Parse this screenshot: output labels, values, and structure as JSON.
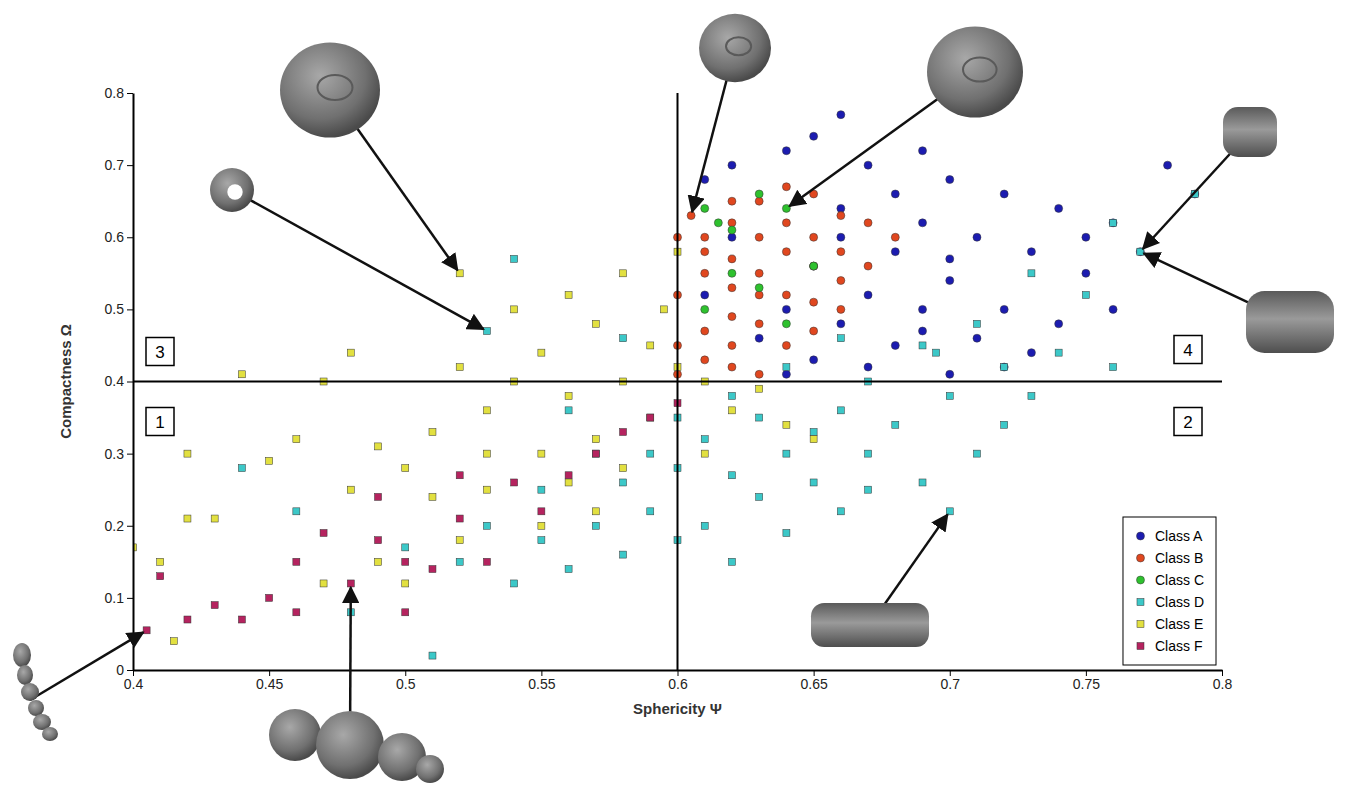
{
  "chart_data": {
    "type": "scatter",
    "x_label": "Sphericity Ψ",
    "y_label": "Compactness Ω",
    "xlim": [
      0.4,
      0.8
    ],
    "xticks": [
      0.4,
      0.45,
      0.5,
      0.55,
      0.6,
      0.65,
      0.7,
      0.75,
      0.8
    ],
    "ylim": [
      0,
      0.8
    ],
    "yticks": [
      0,
      0.1,
      0.2,
      0.3,
      0.4,
      0.5,
      0.6,
      0.7,
      0.8
    ],
    "legend": "lower right",
    "grid": false,
    "quadrant_x": 0.6,
    "quadrant_y": 0.4,
    "quadrant_labels": [
      "1",
      "2",
      "3",
      "4"
    ],
    "annotations": [
      {
        "x": 0.405,
        "y": 0.055
      },
      {
        "x": 0.48,
        "y": 0.12
      },
      {
        "x": 0.53,
        "y": 0.47
      },
      {
        "x": 0.52,
        "y": 0.55
      },
      {
        "x": 0.605,
        "y": 0.63
      },
      {
        "x": 0.64,
        "y": 0.64
      },
      {
        "x": 0.77,
        "y": 0.58
      },
      {
        "x": 0.77,
        "y": 0.58
      },
      {
        "x": 0.7,
        "y": 0.22
      }
    ],
    "series": [
      {
        "name": "Class A",
        "color": "#1c1cb0",
        "marker": "circle",
        "x": [
          0.61,
          0.62,
          0.64,
          0.66,
          0.65,
          0.67,
          0.69,
          0.7,
          0.72,
          0.74,
          0.76,
          0.78,
          0.79,
          0.75,
          0.73,
          0.71,
          0.69,
          0.68,
          0.66,
          0.65,
          0.67,
          0.69,
          0.7,
          0.72,
          0.74,
          0.73,
          0.71,
          0.68,
          0.66,
          0.64,
          0.63,
          0.65,
          0.67,
          0.7,
          0.72,
          0.76,
          0.77,
          0.68,
          0.66,
          0.62,
          0.61,
          0.7,
          0.75,
          0.69,
          0.64
        ],
        "values": [
          0.68,
          0.7,
          0.72,
          0.77,
          0.74,
          0.7,
          0.72,
          0.68,
          0.66,
          0.64,
          0.62,
          0.7,
          0.66,
          0.55,
          0.58,
          0.6,
          0.62,
          0.58,
          0.6,
          0.56,
          0.52,
          0.5,
          0.54,
          0.5,
          0.48,
          0.44,
          0.46,
          0.45,
          0.48,
          0.5,
          0.46,
          0.43,
          0.42,
          0.41,
          0.42,
          0.5,
          0.58,
          0.66,
          0.64,
          0.6,
          0.52,
          0.57,
          0.6,
          0.47,
          0.41
        ]
      },
      {
        "name": "Class B",
        "color": "#e0471f",
        "marker": "circle",
        "x": [
          0.605,
          0.61,
          0.62,
          0.63,
          0.64,
          0.65,
          0.66,
          0.63,
          0.62,
          0.61,
          0.6,
          0.62,
          0.64,
          0.65,
          0.66,
          0.67,
          0.68,
          0.63,
          0.64,
          0.62,
          0.61,
          0.6,
          0.63,
          0.65,
          0.66,
          0.67,
          0.61,
          0.62,
          0.64,
          0.6,
          0.63,
          0.65,
          0.66,
          0.62,
          0.64,
          0.61,
          0.6,
          0.63,
          0.65,
          0.62
        ],
        "values": [
          0.63,
          0.6,
          0.62,
          0.65,
          0.67,
          0.66,
          0.63,
          0.6,
          0.57,
          0.55,
          0.52,
          0.53,
          0.58,
          0.6,
          0.58,
          0.62,
          0.6,
          0.55,
          0.52,
          0.49,
          0.47,
          0.45,
          0.48,
          0.51,
          0.54,
          0.56,
          0.43,
          0.42,
          0.45,
          0.41,
          0.41,
          0.47,
          0.5,
          0.65,
          0.62,
          0.58,
          0.6,
          0.52,
          0.56,
          0.45
        ]
      },
      {
        "name": "Class C",
        "color": "#2ec12e",
        "marker": "circle",
        "x": [
          0.61,
          0.615,
          0.62,
          0.63,
          0.64,
          0.62,
          0.61,
          0.65,
          0.63,
          0.64
        ],
        "values": [
          0.64,
          0.62,
          0.61,
          0.66,
          0.64,
          0.55,
          0.5,
          0.56,
          0.53,
          0.48
        ]
      },
      {
        "name": "Class D",
        "color": "#3cc8c8",
        "marker": "square",
        "x": [
          0.51,
          0.52,
          0.54,
          0.55,
          0.56,
          0.57,
          0.58,
          0.59,
          0.6,
          0.61,
          0.62,
          0.63,
          0.64,
          0.65,
          0.66,
          0.67,
          0.69,
          0.7,
          0.72,
          0.73,
          0.74,
          0.75,
          0.76,
          0.77,
          0.79,
          0.76,
          0.73,
          0.71,
          0.69,
          0.67,
          0.66,
          0.65,
          0.64,
          0.63,
          0.62,
          0.61,
          0.6,
          0.59,
          0.58,
          0.57,
          0.55,
          0.53,
          0.5,
          0.48,
          0.46,
          0.44,
          0.53,
          0.54,
          0.58,
          0.68,
          0.7,
          0.72,
          0.66,
          0.64,
          0.62,
          0.6,
          0.56,
          0.67,
          0.71,
          0.695
        ],
        "values": [
          0.02,
          0.15,
          0.12,
          0.18,
          0.14,
          0.2,
          0.16,
          0.22,
          0.18,
          0.2,
          0.15,
          0.24,
          0.19,
          0.26,
          0.22,
          0.25,
          0.26,
          0.22,
          0.34,
          0.38,
          0.44,
          0.52,
          0.42,
          0.58,
          0.66,
          0.62,
          0.55,
          0.48,
          0.45,
          0.4,
          0.36,
          0.33,
          0.3,
          0.35,
          0.38,
          0.32,
          0.28,
          0.3,
          0.26,
          0.3,
          0.25,
          0.2,
          0.17,
          0.08,
          0.22,
          0.28,
          0.47,
          0.57,
          0.46,
          0.34,
          0.38,
          0.42,
          0.46,
          0.42,
          0.27,
          0.35,
          0.36,
          0.3,
          0.3,
          0.44
        ]
      },
      {
        "name": "Class E",
        "color": "#e2e040",
        "marker": "square",
        "x": [
          0.4,
          0.41,
          0.415,
          0.42,
          0.42,
          0.43,
          0.44,
          0.45,
          0.46,
          0.47,
          0.48,
          0.49,
          0.5,
          0.51,
          0.52,
          0.52,
          0.53,
          0.53,
          0.54,
          0.55,
          0.55,
          0.56,
          0.56,
          0.57,
          0.57,
          0.58,
          0.58,
          0.59,
          0.59,
          0.6,
          0.6,
          0.61,
          0.62,
          0.63,
          0.64,
          0.65,
          0.55,
          0.52,
          0.5,
          0.48,
          0.47,
          0.54,
          0.56,
          0.58,
          0.595,
          0.61,
          0.53,
          0.57,
          0.51,
          0.49
        ],
        "values": [
          0.17,
          0.15,
          0.04,
          0.3,
          0.21,
          0.21,
          0.41,
          0.29,
          0.32,
          0.12,
          0.25,
          0.15,
          0.28,
          0.33,
          0.55,
          0.42,
          0.25,
          0.36,
          0.5,
          0.3,
          0.44,
          0.38,
          0.26,
          0.48,
          0.32,
          0.55,
          0.4,
          0.45,
          0.35,
          0.42,
          0.58,
          0.4,
          0.36,
          0.39,
          0.34,
          0.32,
          0.2,
          0.18,
          0.12,
          0.44,
          0.4,
          0.4,
          0.52,
          0.28,
          0.5,
          0.3,
          0.3,
          0.22,
          0.24,
          0.31
        ]
      },
      {
        "name": "Class F",
        "color": "#b5235f",
        "marker": "square",
        "x": [
          0.405,
          0.41,
          0.42,
          0.44,
          0.45,
          0.46,
          0.47,
          0.48,
          0.49,
          0.5,
          0.51,
          0.52,
          0.53,
          0.54,
          0.55,
          0.56,
          0.57,
          0.58,
          0.59,
          0.5,
          0.46,
          0.49,
          0.52,
          0.43,
          0.6
        ],
        "values": [
          0.055,
          0.13,
          0.07,
          0.07,
          0.1,
          0.08,
          0.19,
          0.12,
          0.18,
          0.15,
          0.14,
          0.21,
          0.15,
          0.26,
          0.22,
          0.27,
          0.3,
          0.33,
          0.35,
          0.08,
          0.15,
          0.24,
          0.27,
          0.09,
          0.37
        ]
      }
    ]
  }
}
